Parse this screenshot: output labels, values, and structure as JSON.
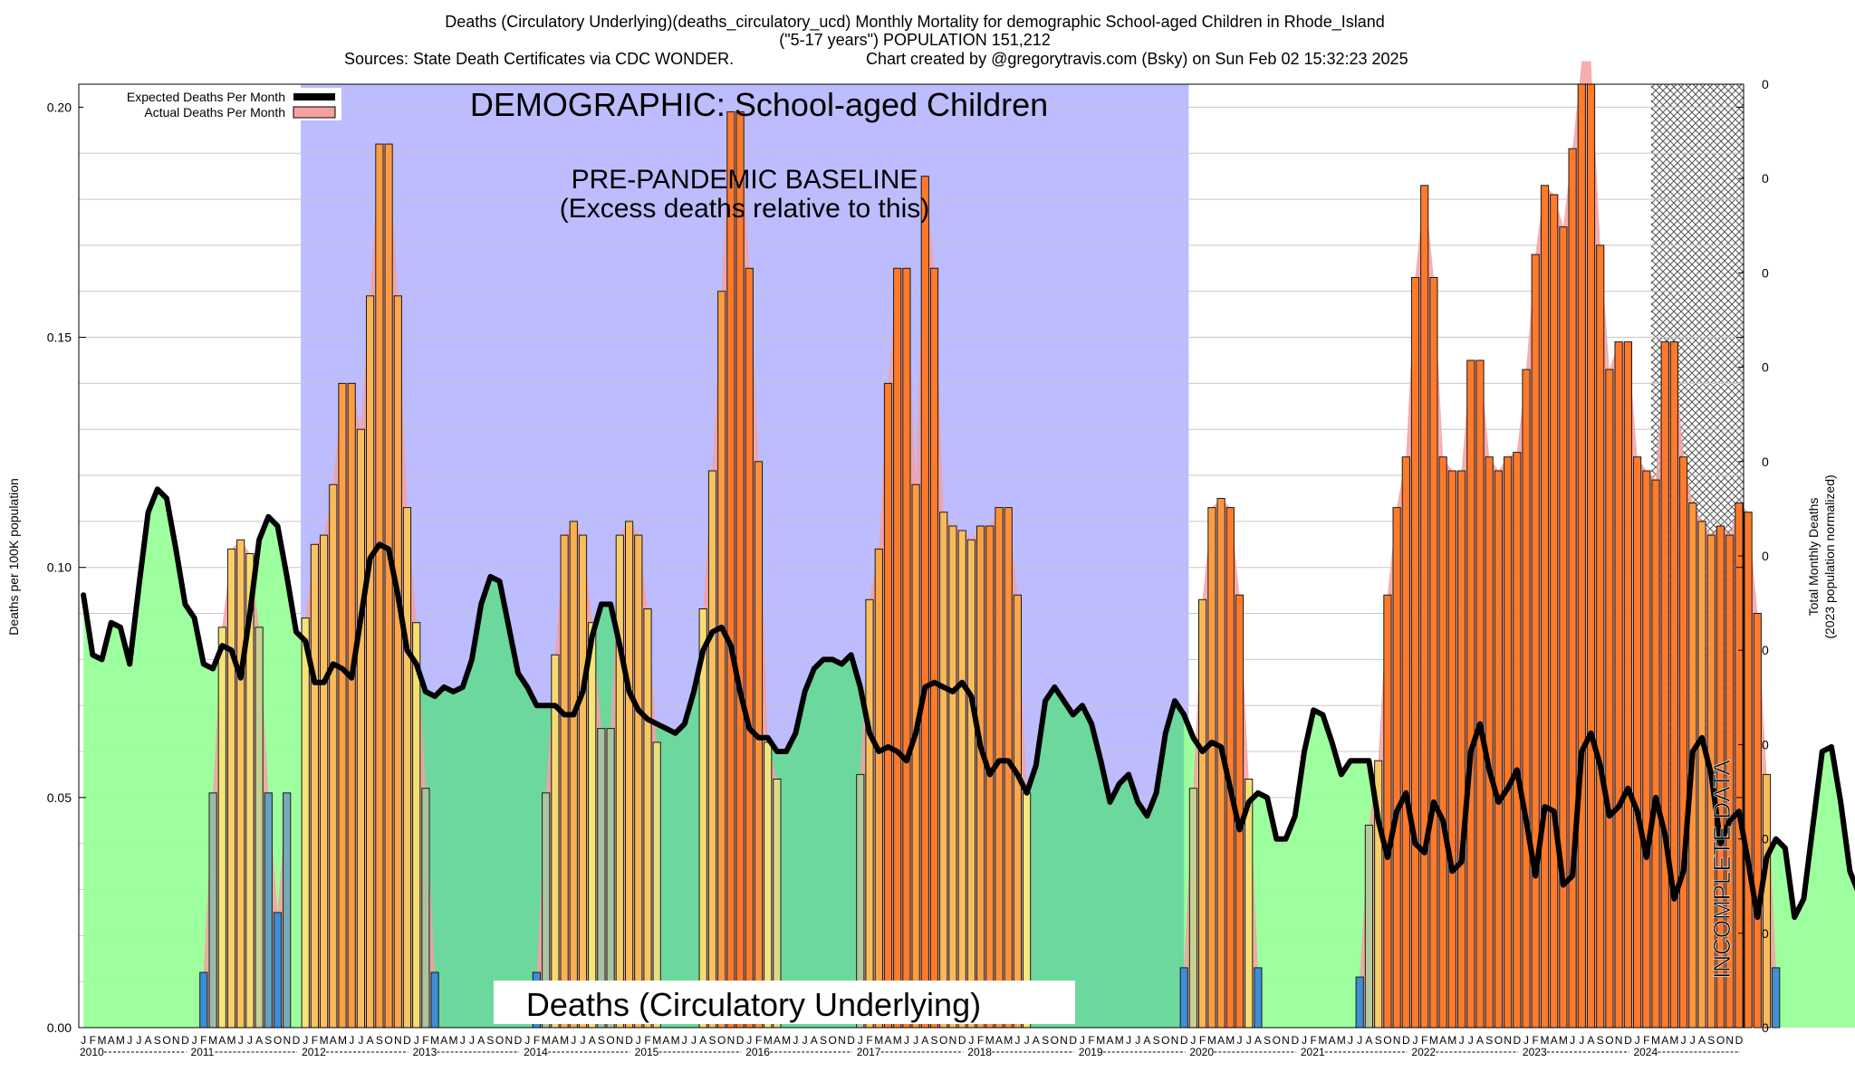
{
  "header": {
    "title_line1": "Deaths (Circulatory Underlying)(deaths_circulatory_ucd) Monthly Mortality for demographic School-aged Children in Rhode_Island",
    "title_line2": "(\"5-17 years\") POPULATION 151,212",
    "title_line3a": "Sources: State Death Certificates via CDC WONDER.",
    "title_line3b": "Chart created by @gregorytravis.com (Bsky) on Sun Feb 02 15:32:23 2025"
  },
  "annotations": {
    "demographic": "DEMOGRAPHIC: School-aged Children",
    "baseline_line1": "PRE-PANDEMIC BASELINE",
    "baseline_line2": "(Excess deaths relative to this)",
    "cause_box": "Deaths (Circulatory Underlying)",
    "incomplete": "INCOMPLETE DATA"
  },
  "legend": {
    "expected": "Expected Deaths Per Month",
    "actual": "Actual Deaths Per Month"
  },
  "axes": {
    "ylabel_left": "Deaths per 100K population",
    "ylabel_right_line1": "Total Monthly Deaths",
    "ylabel_right_line2": "(2023 population normalized)",
    "right_tick_label": "0",
    "month_letters": [
      "J",
      "F",
      "M",
      "A",
      "M",
      "J",
      "J",
      "A",
      "S",
      "O",
      "N",
      "D"
    ]
  },
  "colors": {
    "baseline_shade": "#bcbcff",
    "expected_area_light": "#99ff99",
    "expected_area_dark": "#6cd89e",
    "actual_area": "#f4a0a0",
    "expected_line": "#000000",
    "bar_low": "#3c8fd6",
    "bar_mid": "#f5e87a",
    "bar_high": "#ff7a2a",
    "hatch": "#555555"
  },
  "chart_data": {
    "type": "bar",
    "title": "Deaths (Circulatory Underlying)(deaths_circulatory_ucd) Monthly Mortality for demographic School-aged Children in Rhode_Island",
    "x_start": "2010-01",
    "x_frequency": "monthly",
    "ylim": [
      0,
      0.205
    ],
    "yticks": [
      0.0,
      0.05,
      0.1,
      0.15,
      0.2
    ],
    "ytick_labels": [
      "0.00",
      "0.05",
      "0.10",
      "0.15",
      "0.20"
    ],
    "year_labels": [
      "2010",
      "2011",
      "2012",
      "2013",
      "2014",
      "2015",
      "2016",
      "2017",
      "2018",
      "2019",
      "2020",
      "2021",
      "2022",
      "2023",
      "2024"
    ],
    "baseline_period": [
      "2012-01",
      "2019-12"
    ],
    "incomplete_period": [
      "2024-03",
      "2024-12"
    ],
    "grid": true,
    "legend_position": "top-left",
    "series": [
      {
        "name": "Actual Deaths Per Month",
        "values": [
          0,
          0,
          0,
          0,
          0,
          0,
          0,
          0,
          0,
          0,
          0,
          0,
          0,
          0.012,
          0.051,
          0.087,
          0.104,
          0.106,
          0.103,
          0.087,
          0.051,
          0.025,
          0.051,
          0,
          0.089,
          0.105,
          0.107,
          0.118,
          0.14,
          0.14,
          0.13,
          0.159,
          0.192,
          0.192,
          0.159,
          0.113,
          0.088,
          0.052,
          0.012,
          0,
          0,
          0,
          0,
          0,
          0,
          0,
          0,
          0,
          0,
          0.012,
          0.051,
          0.081,
          0.107,
          0.11,
          0.107,
          0.088,
          0.065,
          0.065,
          0.107,
          0.11,
          0.107,
          0.091,
          0.062,
          0,
          0,
          0,
          0,
          0.091,
          0.121,
          0.16,
          0.199,
          0.199,
          0.165,
          0.123,
          0.062,
          0.054,
          0,
          0,
          0,
          0,
          0,
          0,
          0,
          0,
          0.055,
          0.093,
          0.104,
          0.14,
          0.165,
          0.165,
          0.118,
          0.185,
          0.165,
          0.112,
          0.109,
          0.108,
          0.106,
          0.109,
          0.109,
          0.113,
          0.113,
          0.094,
          0.051,
          0,
          0,
          0,
          0,
          0,
          0,
          0,
          0,
          0,
          0,
          0,
          0,
          0,
          0,
          0,
          0,
          0.013,
          0.052,
          0.093,
          0.113,
          0.115,
          0.113,
          0.094,
          0.054,
          0.013,
          0,
          0,
          0,
          0,
          0,
          0,
          0,
          0,
          0,
          0,
          0.011,
          0.044,
          0.058,
          0.094,
          0.113,
          0.124,
          0.163,
          0.183,
          0.163,
          0.124,
          0.121,
          0.121,
          0.145,
          0.145,
          0.124,
          0.121,
          0.124,
          0.125,
          0.143,
          0.168,
          0.183,
          0.181,
          0.174,
          0.191,
          0.21,
          0.21,
          0.17,
          0.143,
          0.149,
          0.149,
          0.124,
          0.121,
          0.119,
          0.149,
          0.149,
          0.124,
          0.114,
          0.11,
          0.107,
          0.109,
          0.107,
          0.114,
          0.112,
          0.09,
          0.055,
          0.013
        ]
      },
      {
        "name": "Expected Deaths Per Month",
        "values": [
          0.094,
          0.081,
          0.08,
          0.088,
          0.087,
          0.079,
          0.096,
          0.112,
          0.117,
          0.115,
          0.104,
          0.092,
          0.089,
          0.079,
          0.078,
          0.083,
          0.082,
          0.076,
          0.09,
          0.106,
          0.111,
          0.109,
          0.098,
          0.086,
          0.084,
          0.075,
          0.075,
          0.079,
          0.078,
          0.076,
          0.089,
          0.102,
          0.105,
          0.104,
          0.094,
          0.082,
          0.079,
          0.073,
          0.072,
          0.074,
          0.073,
          0.074,
          0.08,
          0.092,
          0.098,
          0.097,
          0.087,
          0.077,
          0.074,
          0.07,
          0.07,
          0.07,
          0.068,
          0.068,
          0.073,
          0.085,
          0.092,
          0.092,
          0.083,
          0.073,
          0.069,
          0.067,
          0.066,
          0.065,
          0.064,
          0.066,
          0.073,
          0.082,
          0.086,
          0.087,
          0.083,
          0.073,
          0.065,
          0.063,
          0.063,
          0.06,
          0.06,
          0.064,
          0.073,
          0.078,
          0.08,
          0.08,
          0.079,
          0.081,
          0.074,
          0.064,
          0.06,
          0.061,
          0.06,
          0.058,
          0.064,
          0.074,
          0.075,
          0.074,
          0.073,
          0.075,
          0.072,
          0.061,
          0.055,
          0.058,
          0.058,
          0.055,
          0.051,
          0.057,
          0.071,
          0.074,
          0.071,
          0.068,
          0.07,
          0.066,
          0.058,
          0.049,
          0.053,
          0.055,
          0.049,
          0.046,
          0.051,
          0.064,
          0.071,
          0.068,
          0.063,
          0.06,
          0.062,
          0.061,
          0.052,
          0.043,
          0.049,
          0.051,
          0.05,
          0.041,
          0.041,
          0.046,
          0.06,
          0.069,
          0.068,
          0.062,
          0.055,
          0.058,
          0.058,
          0.058,
          0.045,
          0.037,
          0.047,
          0.051,
          0.04,
          0.038,
          0.049,
          0.045,
          0.034,
          0.036,
          0.06,
          0.066,
          0.056,
          0.049,
          0.052,
          0.056,
          0.045,
          0.033,
          0.048,
          0.047,
          0.031,
          0.033,
          0.06,
          0.064,
          0.057,
          0.046,
          0.048,
          0.052,
          0.047,
          0.037,
          0.05,
          0.042,
          0.028,
          0.034,
          0.06,
          0.063,
          0.055,
          0.04,
          0.045,
          0.047,
          0.036,
          0.024,
          0.037,
          0.041,
          0.039,
          0.024,
          0.028,
          0.044,
          0.06,
          0.061,
          0.049,
          0.034,
          0.029
        ]
      }
    ]
  }
}
